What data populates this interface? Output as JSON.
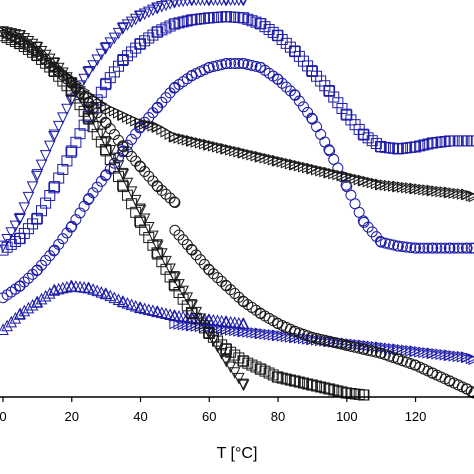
{
  "chart_data": {
    "type": "scatter",
    "title": "",
    "xlabel": "T [°C]",
    "ylabel": "",
    "xlim": [
      0,
      137
    ],
    "ylim": [
      0,
      1
    ],
    "x_ticks": [
      0,
      20,
      40,
      60,
      80,
      100,
      120
    ],
    "x_tick_labels": [
      "0",
      "20",
      "40",
      "60",
      "80",
      "100",
      "120"
    ],
    "grid": false,
    "legend": "none",
    "colors": {
      "black_series": "#1a1a1a",
      "blue_series": "#1c1ca8"
    },
    "series": [
      {
        "marker": "triangle-down",
        "color": "#1c1ca8",
        "x": [
          0,
          5,
          10,
          15,
          20,
          25,
          30,
          35,
          40,
          45,
          50,
          55,
          60,
          65,
          70
        ],
        "y": [
          0.38,
          0.45,
          0.56,
          0.66,
          0.75,
          0.82,
          0.88,
          0.93,
          0.96,
          0.98,
          0.995,
          1.0,
          1.0,
          1.0,
          1.0
        ]
      },
      {
        "marker": "square",
        "color": "#1c1ca8",
        "x": [
          0,
          5,
          10,
          15,
          20,
          25,
          30,
          35,
          40,
          45,
          50,
          55,
          60,
          65,
          70,
          75,
          80,
          85,
          90,
          95,
          100,
          105,
          110,
          115,
          120,
          125,
          130,
          135,
          137
        ],
        "y": [
          0.37,
          0.4,
          0.45,
          0.53,
          0.62,
          0.71,
          0.79,
          0.85,
          0.89,
          0.92,
          0.94,
          0.95,
          0.955,
          0.958,
          0.955,
          0.94,
          0.91,
          0.87,
          0.82,
          0.77,
          0.71,
          0.66,
          0.63,
          0.625,
          0.63,
          0.64,
          0.645,
          0.645,
          0.645
        ]
      },
      {
        "marker": "circle",
        "color": "#1c1ca8",
        "x": [
          0,
          5,
          10,
          15,
          20,
          25,
          30,
          35,
          40,
          45,
          50,
          55,
          60,
          65,
          70,
          75,
          80,
          85,
          90,
          95,
          100,
          105,
          110,
          115,
          120,
          125,
          130,
          135,
          137
        ],
        "y": [
          0.25,
          0.28,
          0.32,
          0.37,
          0.43,
          0.5,
          0.56,
          0.62,
          0.68,
          0.73,
          0.78,
          0.81,
          0.83,
          0.84,
          0.84,
          0.83,
          0.8,
          0.76,
          0.7,
          0.62,
          0.53,
          0.44,
          0.39,
          0.38,
          0.375,
          0.375,
          0.375,
          0.375,
          0.375
        ]
      },
      {
        "marker": "triangle-up",
        "color": "#1c1ca8",
        "x": [
          0,
          5,
          10,
          15,
          20,
          25,
          30,
          35,
          40,
          45,
          50,
          55,
          60,
          65,
          70
        ],
        "y": [
          0.17,
          0.21,
          0.24,
          0.27,
          0.28,
          0.275,
          0.26,
          0.24,
          0.225,
          0.215,
          0.205,
          0.2,
          0.195,
          0.19,
          0.185
        ]
      },
      {
        "marker": "triangle-right",
        "color": "#1c1ca8",
        "x": [
          50,
          55,
          60,
          65,
          70,
          75,
          80,
          85,
          90,
          95,
          100,
          105,
          110,
          115,
          120,
          125,
          130,
          135,
          137
        ],
        "y": [
          0.185,
          0.18,
          0.175,
          0.17,
          0.165,
          0.16,
          0.155,
          0.15,
          0.145,
          0.14,
          0.135,
          0.13,
          0.125,
          0.12,
          0.115,
          0.11,
          0.105,
          0.1,
          0.095
        ]
      },
      {
        "marker": "triangle-down",
        "color": "#1a1a1a",
        "x": [
          0,
          5,
          10,
          15,
          20,
          25,
          30,
          35,
          40,
          45,
          50,
          55,
          60,
          65,
          70
        ],
        "y": [
          0.92,
          0.91,
          0.88,
          0.84,
          0.79,
          0.72,
          0.64,
          0.56,
          0.47,
          0.38,
          0.3,
          0.23,
          0.16,
          0.09,
          0.03
        ]
      },
      {
        "marker": "square",
        "color": "#1a1a1a",
        "x": [
          0,
          5,
          10,
          15,
          20,
          25,
          30,
          35,
          40,
          45,
          50,
          55,
          60,
          65,
          70,
          75,
          80,
          85,
          90,
          95,
          100,
          105
        ],
        "y": [
          0.91,
          0.89,
          0.86,
          0.82,
          0.77,
          0.7,
          0.62,
          0.53,
          0.44,
          0.36,
          0.28,
          0.21,
          0.16,
          0.12,
          0.09,
          0.07,
          0.05,
          0.04,
          0.03,
          0.02,
          0.01,
          0.005
        ]
      },
      {
        "marker": "circle",
        "color": "#1a1a1a",
        "x": [
          0,
          5,
          10,
          15,
          20,
          25,
          30,
          35,
          40,
          45,
          50
        ],
        "y": [
          0.92,
          0.9,
          0.87,
          0.83,
          0.79,
          0.74,
          0.69,
          0.63,
          0.58,
          0.53,
          0.49
        ]
      },
      {
        "marker": "circle",
        "color": "#1a1a1a",
        "x": [
          50,
          55,
          60,
          65,
          70,
          75,
          80,
          85,
          90,
          95,
          100,
          105,
          110,
          115,
          120,
          125,
          130,
          135,
          137
        ],
        "y": [
          0.42,
          0.37,
          0.32,
          0.28,
          0.24,
          0.21,
          0.185,
          0.165,
          0.15,
          0.14,
          0.13,
          0.12,
          0.11,
          0.095,
          0.08,
          0.06,
          0.04,
          0.02,
          0.01
        ]
      },
      {
        "marker": "triangle-right",
        "color": "#1a1a1a",
        "x": [
          0,
          5,
          10,
          15,
          20,
          25,
          30,
          35,
          40,
          45,
          50,
          55,
          60,
          65,
          70,
          75,
          80,
          85,
          90,
          95,
          100,
          105,
          110,
          115,
          120,
          125,
          130,
          135,
          137
        ],
        "y": [
          0.92,
          0.9,
          0.87,
          0.83,
          0.8,
          0.76,
          0.73,
          0.71,
          0.69,
          0.68,
          0.655,
          0.645,
          0.635,
          0.625,
          0.615,
          0.605,
          0.595,
          0.585,
          0.575,
          0.565,
          0.555,
          0.545,
          0.535,
          0.53,
          0.525,
          0.52,
          0.515,
          0.51,
          0.505
        ]
      }
    ]
  }
}
